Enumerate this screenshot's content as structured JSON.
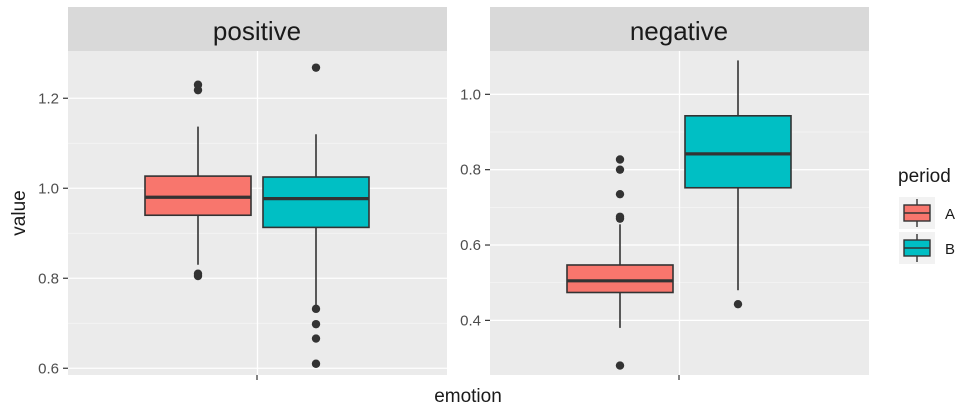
{
  "chart_data": {
    "type": "boxplot",
    "xlabel": "emotion",
    "ylabel": "value",
    "legend": {
      "title": "period",
      "position": "right",
      "items": [
        {
          "label": "A",
          "color": "#F8766D"
        },
        {
          "label": "B",
          "color": "#00BFC4"
        }
      ]
    },
    "panels": [
      {
        "strip": "positive",
        "ylim": [
          0.585,
          1.305
        ],
        "yticks": [
          0.6,
          0.8,
          1.0,
          1.2
        ],
        "ytick_labels": [
          "0.6",
          "0.8",
          "1.0",
          "1.2"
        ],
        "boxes": [
          {
            "period": "A",
            "q1": 0.94,
            "median": 0.98,
            "q3": 1.027,
            "whisker_low": 0.83,
            "whisker_high": 1.137,
            "outliers": [
              0.805,
              0.81,
              1.218,
              1.23
            ]
          },
          {
            "period": "B",
            "q1": 0.913,
            "median": 0.977,
            "q3": 1.025,
            "whisker_low": 0.74,
            "whisker_high": 1.12,
            "outliers": [
              0.61,
              0.666,
              0.698,
              0.732,
              1.268
            ]
          }
        ]
      },
      {
        "strip": "negative",
        "ylim": [
          0.255,
          1.115
        ],
        "yticks": [
          0.4,
          0.6,
          0.8,
          1.0
        ],
        "ytick_labels": [
          "0.4",
          "0.6",
          "0.8",
          "1.0"
        ],
        "boxes": [
          {
            "period": "A",
            "q1": 0.474,
            "median": 0.505,
            "q3": 0.547,
            "whisker_low": 0.38,
            "whisker_high": 0.655,
            "outliers": [
              0.28,
              0.67,
              0.675,
              0.735,
              0.8,
              0.827
            ]
          },
          {
            "period": "B",
            "q1": 0.752,
            "median": 0.842,
            "q3": 0.943,
            "whisker_low": 0.48,
            "whisker_high": 1.09,
            "outliers": [
              0.443
            ]
          }
        ]
      }
    ]
  }
}
